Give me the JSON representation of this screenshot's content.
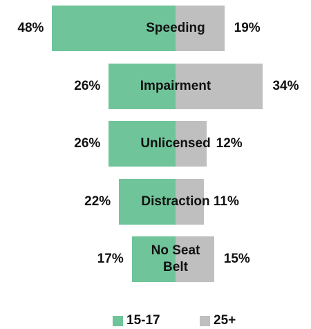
{
  "chart_data": {
    "type": "diverging-bar",
    "categories": [
      "Speeding",
      "Impairment",
      "Unlicensed",
      "Distraction",
      "No Seat Belt"
    ],
    "series": [
      {
        "name": "15-17",
        "color": "#70c49a",
        "values": [
          48,
          26,
          26,
          22,
          17
        ],
        "value_labels": [
          "48%",
          "26%",
          "26%",
          "22%",
          "17%"
        ]
      },
      {
        "name": "25+",
        "color": "#bfbfbf",
        "values": [
          19,
          34,
          12,
          11,
          15
        ],
        "value_labels": [
          "19%",
          "34%",
          "12%",
          "11%",
          "15%"
        ]
      }
    ],
    "legend": "bottom"
  }
}
